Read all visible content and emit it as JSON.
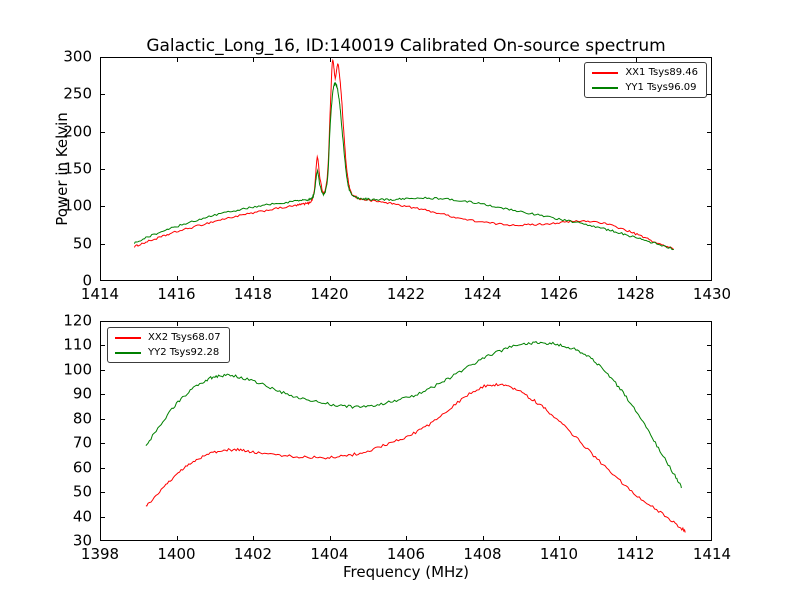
{
  "figure_title": "Galactic_Long_16, ID:140019 Calibrated On-source spectrum",
  "chart_data": [
    {
      "type": "line",
      "title": "Galactic_Long_16, ID:140019 Calibrated On-source spectrum",
      "xlabel": "",
      "ylabel": "Power in Kelvin",
      "xlim": [
        1414,
        1430
      ],
      "ylim": [
        0,
        300
      ],
      "xticks": [
        1414,
        1416,
        1418,
        1420,
        1422,
        1424,
        1426,
        1428,
        1430
      ],
      "yticks": [
        0,
        50,
        100,
        150,
        200,
        250,
        300
      ],
      "grid": false,
      "legend_position": "top-right",
      "series": [
        {
          "name": "XX1 Tsys89.46",
          "color": "#ff0000",
          "noise": 1.3,
          "points": [
            [
              1414.9,
              46
            ],
            [
              1415.2,
              52
            ],
            [
              1415.6,
              59
            ],
            [
              1416.0,
              66
            ],
            [
              1416.5,
              73
            ],
            [
              1417.0,
              80
            ],
            [
              1417.5,
              86
            ],
            [
              1418.0,
              91
            ],
            [
              1418.5,
              96
            ],
            [
              1419.0,
              100
            ],
            [
              1419.3,
              103
            ],
            [
              1419.5,
              106
            ],
            [
              1419.6,
              120
            ],
            [
              1419.68,
              165
            ],
            [
              1419.75,
              138
            ],
            [
              1419.85,
              118
            ],
            [
              1419.95,
              145
            ],
            [
              1420.02,
              230
            ],
            [
              1420.08,
              295
            ],
            [
              1420.15,
              272
            ],
            [
              1420.22,
              290
            ],
            [
              1420.3,
              255
            ],
            [
              1420.38,
              195
            ],
            [
              1420.45,
              150
            ],
            [
              1420.55,
              120
            ],
            [
              1420.7,
              112
            ],
            [
              1420.9,
              109
            ],
            [
              1421.2,
              107
            ],
            [
              1421.6,
              104
            ],
            [
              1422.0,
              100
            ],
            [
              1422.5,
              95
            ],
            [
              1423.0,
              89
            ],
            [
              1423.5,
              83
            ],
            [
              1424.0,
              79
            ],
            [
              1424.5,
              76
            ],
            [
              1425.0,
              75
            ],
            [
              1425.5,
              76
            ],
            [
              1426.0,
              78
            ],
            [
              1426.5,
              80
            ],
            [
              1427.0,
              79
            ],
            [
              1427.4,
              74
            ],
            [
              1427.8,
              67
            ],
            [
              1428.2,
              59
            ],
            [
              1428.6,
              50
            ],
            [
              1429.0,
              43
            ]
          ]
        },
        {
          "name": "YY1 Tsys96.09",
          "color": "#008000",
          "noise": 1.3,
          "points": [
            [
              1414.9,
              51
            ],
            [
              1415.2,
              58
            ],
            [
              1415.6,
              66
            ],
            [
              1416.0,
              73
            ],
            [
              1416.5,
              81
            ],
            [
              1417.0,
              88
            ],
            [
              1417.5,
              94
            ],
            [
              1418.0,
              99
            ],
            [
              1418.5,
              103
            ],
            [
              1419.0,
              106
            ],
            [
              1419.3,
              108
            ],
            [
              1419.5,
              110
            ],
            [
              1419.6,
              118
            ],
            [
              1419.68,
              147
            ],
            [
              1419.75,
              128
            ],
            [
              1419.85,
              116
            ],
            [
              1419.95,
              138
            ],
            [
              1420.02,
              210
            ],
            [
              1420.1,
              258
            ],
            [
              1420.18,
              262
            ],
            [
              1420.26,
              240
            ],
            [
              1420.35,
              190
            ],
            [
              1420.45,
              140
            ],
            [
              1420.55,
              118
            ],
            [
              1420.7,
              112
            ],
            [
              1420.9,
              110
            ],
            [
              1421.2,
              109
            ],
            [
              1421.6,
              109
            ],
            [
              1422.0,
              110
            ],
            [
              1422.5,
              111
            ],
            [
              1423.0,
              110
            ],
            [
              1423.5,
              107
            ],
            [
              1424.0,
              103
            ],
            [
              1424.5,
              98
            ],
            [
              1425.0,
              93
            ],
            [
              1425.5,
              88
            ],
            [
              1426.0,
              83
            ],
            [
              1426.5,
              78
            ],
            [
              1427.0,
              72
            ],
            [
              1427.4,
              67
            ],
            [
              1427.8,
              61
            ],
            [
              1428.2,
              55
            ],
            [
              1428.6,
              49
            ],
            [
              1429.0,
              43
            ]
          ]
        }
      ]
    },
    {
      "type": "line",
      "title": "",
      "xlabel": "Frequency (MHz)",
      "ylabel": "",
      "xlim": [
        1398,
        1414
      ],
      "ylim": [
        30,
        120
      ],
      "xticks": [
        1398,
        1400,
        1402,
        1404,
        1406,
        1408,
        1410,
        1412,
        1414
      ],
      "yticks": [
        30,
        40,
        50,
        60,
        70,
        80,
        90,
        100,
        110,
        120
      ],
      "grid": false,
      "legend_position": "top-left",
      "series": [
        {
          "name": "XX2 Tsys68.07",
          "color": "#ff0000",
          "noise": 0.6,
          "points": [
            [
              1399.2,
              44
            ],
            [
              1399.6,
              51
            ],
            [
              1400.0,
              57
            ],
            [
              1400.4,
              62
            ],
            [
              1400.8,
              65.5
            ],
            [
              1401.2,
              67
            ],
            [
              1401.6,
              67.3
            ],
            [
              1402.0,
              66.5
            ],
            [
              1402.5,
              65.5
            ],
            [
              1403.0,
              64.7
            ],
            [
              1403.5,
              64.2
            ],
            [
              1404.0,
              64.2
            ],
            [
              1404.5,
              65
            ],
            [
              1405.0,
              66.8
            ],
            [
              1405.5,
              69.5
            ],
            [
              1406.0,
              72.5
            ],
            [
              1406.5,
              76.5
            ],
            [
              1407.0,
              82
            ],
            [
              1407.5,
              88.5
            ],
            [
              1408.0,
              93
            ],
            [
              1408.4,
              94
            ],
            [
              1408.8,
              92.5
            ],
            [
              1409.2,
              89
            ],
            [
              1409.6,
              84.5
            ],
            [
              1410.0,
              79
            ],
            [
              1410.5,
              71.5
            ],
            [
              1411.0,
              63.5
            ],
            [
              1411.5,
              56
            ],
            [
              1412.0,
              49
            ],
            [
              1412.5,
              43.5
            ],
            [
              1413.0,
              37.5
            ],
            [
              1413.3,
              34
            ]
          ]
        },
        {
          "name": "YY2 Tsys92.28",
          "color": "#008000",
          "noise": 0.6,
          "points": [
            [
              1399.2,
              69
            ],
            [
              1399.6,
              78
            ],
            [
              1400.0,
              86
            ],
            [
              1400.4,
              92
            ],
            [
              1400.8,
              96
            ],
            [
              1401.1,
              97.5
            ],
            [
              1401.5,
              97.5
            ],
            [
              1402.0,
              95.5
            ],
            [
              1402.5,
              92.5
            ],
            [
              1403.0,
              89.5
            ],
            [
              1403.5,
              87.5
            ],
            [
              1404.0,
              86
            ],
            [
              1404.5,
              85
            ],
            [
              1405.0,
              85.3
            ],
            [
              1405.5,
              86.5
            ],
            [
              1406.0,
              88.5
            ],
            [
              1406.5,
              91.5
            ],
            [
              1407.0,
              95.5
            ],
            [
              1407.5,
              100
            ],
            [
              1408.0,
              104.5
            ],
            [
              1408.5,
              108
            ],
            [
              1409.0,
              110.3
            ],
            [
              1409.4,
              111
            ],
            [
              1409.8,
              110.8
            ],
            [
              1410.2,
              109.5
            ],
            [
              1410.6,
              107
            ],
            [
              1411.0,
              102.5
            ],
            [
              1411.4,
              96
            ],
            [
              1411.8,
              88
            ],
            [
              1412.2,
              78.5
            ],
            [
              1412.6,
              68
            ],
            [
              1413.0,
              57.5
            ],
            [
              1413.2,
              52
            ]
          ]
        }
      ]
    }
  ]
}
